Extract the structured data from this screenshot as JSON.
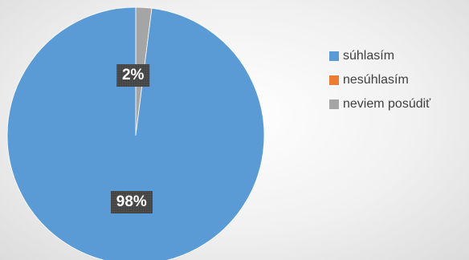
{
  "chart_data": {
    "type": "pie",
    "title": "",
    "categories": [
      "súhlasím",
      "nesúhlasím",
      "neviem posúdiť"
    ],
    "values": [
      98,
      0,
      2
    ],
    "data_labels": [
      "98%",
      "",
      "2%"
    ],
    "colors": [
      "#5b9bd5",
      "#ed7d31",
      "#a5a5a5"
    ],
    "legend_position": "right"
  }
}
